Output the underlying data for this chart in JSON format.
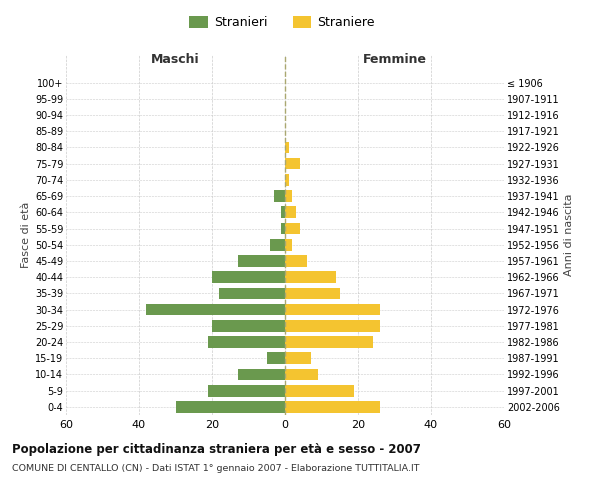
{
  "age_groups": [
    "0-4",
    "5-9",
    "10-14",
    "15-19",
    "20-24",
    "25-29",
    "30-34",
    "35-39",
    "40-44",
    "45-49",
    "50-54",
    "55-59",
    "60-64",
    "65-69",
    "70-74",
    "75-79",
    "80-84",
    "85-89",
    "90-94",
    "95-99",
    "100+"
  ],
  "birth_years": [
    "2002-2006",
    "1997-2001",
    "1992-1996",
    "1987-1991",
    "1982-1986",
    "1977-1981",
    "1972-1976",
    "1967-1971",
    "1962-1966",
    "1957-1961",
    "1952-1956",
    "1947-1951",
    "1942-1946",
    "1937-1941",
    "1932-1936",
    "1927-1931",
    "1922-1926",
    "1917-1921",
    "1912-1916",
    "1907-1911",
    "≤ 1906"
  ],
  "males": [
    30,
    21,
    13,
    5,
    21,
    20,
    38,
    18,
    20,
    13,
    4,
    1,
    1,
    3,
    0,
    0,
    0,
    0,
    0,
    0,
    0
  ],
  "females": [
    26,
    19,
    9,
    7,
    24,
    26,
    26,
    15,
    14,
    6,
    2,
    4,
    3,
    2,
    1,
    4,
    1,
    0,
    0,
    0,
    0
  ],
  "male_color": "#6a994e",
  "female_color": "#f4c430",
  "background_color": "#ffffff",
  "grid_color": "#cccccc",
  "title": "Popolazione per cittadinanza straniera per età e sesso - 2007",
  "subtitle": "COMUNE DI CENTALLO (CN) - Dati ISTAT 1° gennaio 2007 - Elaborazione TUTTITALIA.IT",
  "xlabel_left": "Maschi",
  "xlabel_right": "Femmine",
  "ylabel_left": "Fasce di età",
  "ylabel_right": "Anni di nascita",
  "legend_male": "Stranieri",
  "legend_female": "Straniere",
  "xlim": 60
}
